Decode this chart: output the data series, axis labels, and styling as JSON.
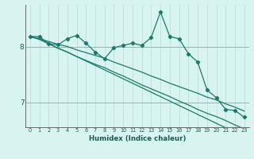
{
  "xlabel": "Humidex (Indice chaleur)",
  "x_values": [
    0,
    1,
    2,
    3,
    4,
    5,
    6,
    7,
    8,
    9,
    10,
    11,
    12,
    13,
    14,
    15,
    16,
    17,
    18,
    19,
    20,
    21,
    22,
    23
  ],
  "line1": [
    8.18,
    8.18,
    8.05,
    8.03,
    8.14,
    8.2,
    8.06,
    7.9,
    7.78,
    7.98,
    8.02,
    8.06,
    8.02,
    8.16,
    8.62,
    8.18,
    8.14,
    7.87,
    7.72,
    7.22,
    7.08,
    6.87,
    6.85,
    6.73
  ],
  "line2": [
    8.18,
    8.13,
    8.05,
    7.97,
    7.9,
    7.82,
    7.74,
    7.66,
    7.58,
    7.5,
    7.42,
    7.34,
    7.26,
    7.18,
    7.1,
    7.02,
    6.94,
    6.86,
    6.78,
    6.7,
    6.62,
    6.54,
    6.46,
    6.38
  ],
  "line3": [
    8.18,
    8.13,
    8.05,
    7.97,
    7.9,
    7.82,
    7.75,
    7.68,
    7.62,
    7.54,
    7.47,
    7.39,
    7.31,
    7.24,
    7.17,
    7.1,
    7.02,
    6.95,
    6.87,
    6.8,
    6.74,
    6.67,
    6.59,
    6.52
  ],
  "line4": [
    8.18,
    8.14,
    8.09,
    8.04,
    8.0,
    7.94,
    7.89,
    7.84,
    7.79,
    7.72,
    7.66,
    7.6,
    7.54,
    7.47,
    7.41,
    7.34,
    7.28,
    7.22,
    7.16,
    7.09,
    7.04,
    6.97,
    6.91,
    6.84
  ],
  "line_color": "#1a7a6a",
  "bg_color": "#d8f4f0",
  "vgrid_color": "#b8ddd8",
  "hgrid_color": "#c8a0a0",
  "yticks": [
    7,
    8
  ],
  "ylim": [
    6.55,
    8.75
  ],
  "xlim": [
    -0.5,
    23.5
  ]
}
